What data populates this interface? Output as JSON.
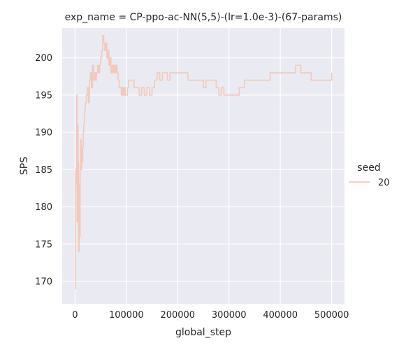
{
  "chart_data": {
    "type": "line",
    "title": "exp_name = CP-ppo-ac-NN(5,5)-(lr=1.0e-3)-(67-params)",
    "xlabel": "global_step",
    "ylabel": "SPS",
    "xlim": [
      -25000,
      525000
    ],
    "ylim": [
      167,
      204
    ],
    "xticks": [
      0,
      100000,
      200000,
      300000,
      400000,
      500000
    ],
    "xtick_labels": [
      "0",
      "100000",
      "200000",
      "300000",
      "400000",
      "500000"
    ],
    "yticks": [
      170,
      175,
      180,
      185,
      190,
      195,
      200
    ],
    "ytick_labels": [
      "170",
      "175",
      "180",
      "185",
      "190",
      "195",
      "200"
    ],
    "grid": true,
    "legend": {
      "title": "seed",
      "placement": "right"
    },
    "series": [
      {
        "name": "20",
        "color": "#f3c9bb",
        "x": [
          0,
          1000,
          2000,
          3000,
          4000,
          5000,
          6000,
          7000,
          8000,
          9000,
          10000,
          11000,
          12000,
          13000,
          14000,
          15000,
          16000,
          17000,
          18000,
          19000,
          20000,
          22000,
          24000,
          26000,
          28000,
          30000,
          32000,
          34000,
          36000,
          38000,
          40000,
          42000,
          44000,
          46000,
          48000,
          50000,
          52000,
          54000,
          56000,
          58000,
          60000,
          62000,
          64000,
          66000,
          68000,
          70000,
          72000,
          74000,
          76000,
          78000,
          80000,
          82000,
          84000,
          86000,
          88000,
          90000,
          92000,
          94000,
          96000,
          98000,
          100000,
          102000,
          104000,
          106000,
          110000,
          115000,
          120000,
          125000,
          130000,
          135000,
          140000,
          145000,
          150000,
          155000,
          160000,
          165000,
          170000,
          175000,
          180000,
          185000,
          190000,
          200000,
          210000,
          220000,
          230000,
          240000,
          245000,
          250000,
          255000,
          260000,
          270000,
          275000,
          280000,
          285000,
          290000,
          300000,
          310000,
          320000,
          325000,
          330000,
          340000,
          350000,
          360000,
          370000,
          380000,
          390000,
          400000,
          410000,
          420000,
          430000,
          435000,
          440000,
          450000,
          460000,
          470000,
          480000,
          490000,
          495000,
          500000
        ],
        "values": [
          169,
          185,
          183,
          195,
          178,
          191,
          186,
          174,
          183,
          176,
          185,
          189,
          185,
          188,
          186,
          188,
          190,
          191,
          192,
          193,
          194,
          195,
          196,
          194,
          197,
          198,
          196,
          199,
          197,
          198,
          197,
          198,
          199,
          198,
          199,
          200,
          201,
          203,
          202,
          201,
          202,
          200,
          201,
          199,
          200,
          198,
          199,
          198,
          199,
          198,
          199,
          198,
          197,
          196,
          196,
          195,
          196,
          195,
          196,
          195,
          195,
          196,
          197,
          197,
          197,
          196,
          196,
          195,
          196,
          195,
          196,
          195,
          196,
          197,
          198,
          197,
          198,
          198,
          197,
          198,
          198,
          198,
          198,
          197,
          197,
          197,
          197,
          196,
          197,
          197,
          197,
          196,
          195,
          196,
          195,
          195,
          195,
          196,
          196,
          197,
          197,
          197,
          197,
          197,
          198,
          198,
          198,
          198,
          198,
          199,
          199,
          198,
          198,
          197,
          197,
          197,
          197,
          197,
          198
        ]
      }
    ]
  }
}
